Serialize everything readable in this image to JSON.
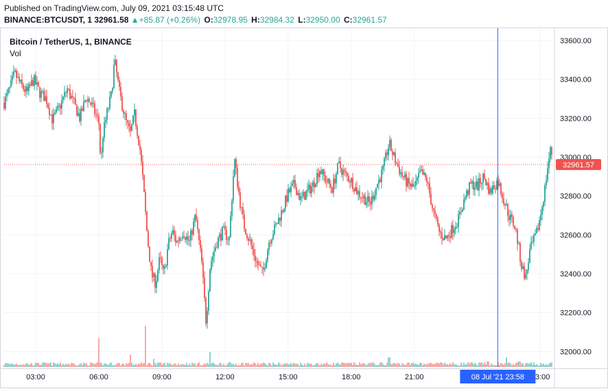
{
  "header": {
    "published": "Published on TradingView.com, July 09, 2021 03:15:48 UTC",
    "symbol": "BINANCE:BTCUSDT, 1",
    "last": "32961.58",
    "change_arrow": "▲",
    "change": "+85.87 (+0.26%)",
    "open_label": "O:",
    "open": "32978.95",
    "high_label": "H:",
    "high": "32984.32",
    "low_label": "L:",
    "low": "32950.00",
    "close_label": "C:",
    "close": "32961.57"
  },
  "legend": {
    "title": "Bitcoin / TetherUS, 1, BINANCE",
    "volume": "Vol"
  },
  "chart_data": {
    "type": "candlestick",
    "ylim": [
      31920,
      33660
    ],
    "y_ticks": [
      "32000.00",
      "32200.00",
      "32400.00",
      "32600.00",
      "32800.00",
      "33000.00",
      "33200.00",
      "33400.00",
      "33600.00"
    ],
    "y_tick_values": [
      32000,
      32200,
      32400,
      32600,
      32800,
      33000,
      33200,
      33400,
      33600
    ],
    "x_start_hour": 1.5,
    "x_end_hour": 27.6,
    "x_ticks": [
      "03:00",
      "06:00",
      "09:00",
      "12:00",
      "15:00",
      "18:00",
      "21:00",
      "03:00"
    ],
    "x_tick_hours": [
      3,
      6,
      9,
      12,
      15,
      18,
      21,
      27
    ],
    "last_price": 32961.57,
    "last_price_label": "32961.57",
    "crosshair_hour": 24.97,
    "crosshair_label": "08 Jul '21   23:58",
    "grid": true,
    "colors": {
      "up": "#26a69a",
      "down": "#ef5350",
      "crosshair": "#2962ff",
      "grid": "#f0f3fa",
      "axis_text": "#131722"
    },
    "price_path": [
      [
        1.5,
        33280
      ],
      [
        1.8,
        33360
      ],
      [
        2.0,
        33430
      ],
      [
        2.3,
        33370
      ],
      [
        2.6,
        33330
      ],
      [
        2.9,
        33400
      ],
      [
        3.2,
        33330
      ],
      [
        3.5,
        33300
      ],
      [
        3.8,
        33190
      ],
      [
        4.1,
        33250
      ],
      [
        4.5,
        33350
      ],
      [
        4.8,
        33280
      ],
      [
        5.1,
        33200
      ],
      [
        5.4,
        33310
      ],
      [
        5.7,
        33260
      ],
      [
        6.0,
        33180
      ],
      [
        6.1,
        32960
      ],
      [
        6.2,
        33120
      ],
      [
        6.4,
        33230
      ],
      [
        6.6,
        33320
      ],
      [
        6.75,
        33500
      ],
      [
        7.0,
        33320
      ],
      [
        7.3,
        33180
      ],
      [
        7.5,
        33120
      ],
      [
        7.7,
        33220
      ],
      [
        7.95,
        33050
      ],
      [
        8.1,
        32880
      ],
      [
        8.3,
        32600
      ],
      [
        8.5,
        32400
      ],
      [
        8.7,
        32350
      ],
      [
        8.9,
        32480
      ],
      [
        9.1,
        32390
      ],
      [
        9.3,
        32550
      ],
      [
        9.5,
        32620
      ],
      [
        9.7,
        32560
      ],
      [
        10.0,
        32620
      ],
      [
        10.3,
        32560
      ],
      [
        10.6,
        32700
      ],
      [
        10.9,
        32450
      ],
      [
        11.1,
        32150
      ],
      [
        11.3,
        32450
      ],
      [
        11.6,
        32560
      ],
      [
        11.9,
        32620
      ],
      [
        12.2,
        32580
      ],
      [
        12.45,
        32990
      ],
      [
        12.7,
        32780
      ],
      [
        12.9,
        32650
      ],
      [
        13.2,
        32560
      ],
      [
        13.5,
        32460
      ],
      [
        13.8,
        32400
      ],
      [
        14.1,
        32570
      ],
      [
        14.4,
        32640
      ],
      [
        14.7,
        32720
      ],
      [
        15.0,
        32810
      ],
      [
        15.3,
        32860
      ],
      [
        15.6,
        32780
      ],
      [
        15.9,
        32820
      ],
      [
        16.2,
        32860
      ],
      [
        16.5,
        32940
      ],
      [
        16.8,
        32880
      ],
      [
        17.1,
        32840
      ],
      [
        17.4,
        32960
      ],
      [
        17.7,
        32910
      ],
      [
        18.0,
        32880
      ],
      [
        18.3,
        32820
      ],
      [
        18.6,
        32790
      ],
      [
        18.9,
        32760
      ],
      [
        19.2,
        32850
      ],
      [
        19.5,
        32930
      ],
      [
        19.8,
        33070
      ],
      [
        20.1,
        32980
      ],
      [
        20.4,
        32910
      ],
      [
        20.7,
        32860
      ],
      [
        21.0,
        32840
      ],
      [
        21.3,
        32920
      ],
      [
        21.6,
        32880
      ],
      [
        21.9,
        32720
      ],
      [
        22.2,
        32610
      ],
      [
        22.5,
        32580
      ],
      [
        22.8,
        32630
      ],
      [
        23.1,
        32680
      ],
      [
        23.4,
        32790
      ],
      [
        23.7,
        32860
      ],
      [
        24.0,
        32850
      ],
      [
        24.3,
        32900
      ],
      [
        24.6,
        32820
      ],
      [
        24.97,
        32880
      ],
      [
        25.2,
        32800
      ],
      [
        25.5,
        32700
      ],
      [
        25.8,
        32640
      ],
      [
        26.1,
        32440
      ],
      [
        26.3,
        32380
      ],
      [
        26.5,
        32520
      ],
      [
        26.8,
        32600
      ],
      [
        27.0,
        32700
      ],
      [
        27.2,
        32830
      ],
      [
        27.35,
        32960
      ],
      [
        27.5,
        33050
      ],
      [
        27.6,
        32960
      ]
    ],
    "volume_spikes": [
      [
        3.1,
        6
      ],
      [
        6.0,
        42
      ],
      [
        7.5,
        18
      ],
      [
        8.2,
        60
      ],
      [
        8.6,
        12
      ],
      [
        11.3,
        22
      ],
      [
        13.0,
        6
      ],
      [
        19.8,
        14
      ],
      [
        21.3,
        6
      ],
      [
        24.5,
        8
      ],
      [
        25.4,
        14
      ],
      [
        26.0,
        8
      ]
    ]
  }
}
